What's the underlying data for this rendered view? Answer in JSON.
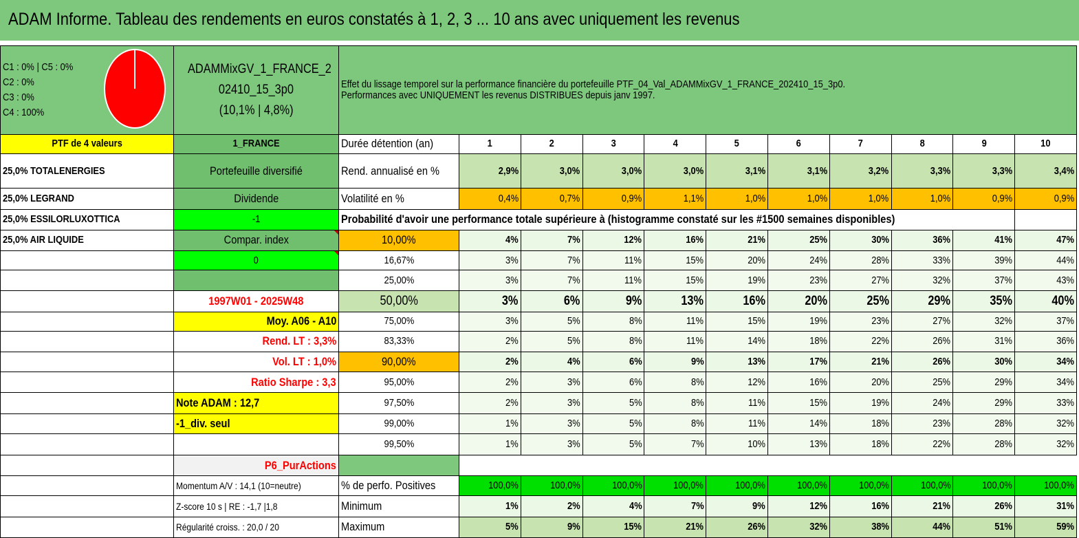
{
  "title": "ADAM Informe. Tableau des rendements en euros constatés à 1, 2, 3 ... 10 ans avec uniquement les revenus",
  "legend": {
    "lines": [
      "C1 : 0% | C5 : 0%",
      "C2 : 0%",
      "C3 : 0%",
      "C4 : 100%"
    ],
    "pie_color": "#ff0000"
  },
  "portfolio": {
    "name_line1": "ADAMMixGV_1_FRANCE_2",
    "name_line2": "02410_15_3p0",
    "name_line3": "(10,1% | 4,8%)",
    "count_label": "PTF de 4 valeurs",
    "region": "1_FRANCE",
    "description_line1": "Effet du lissage temporel sur la performance financière du portefeuille PTF_04_Val_ADAMMixGV_1_FRANCE_202410_15_3p0.",
    "description_line2": "Performances avec UNIQUEMENT les revenus DISTRIBUES depuis janv 1997."
  },
  "holdings": [
    "25,0% TOTALENERGIES",
    "25,0% LEGRAND",
    "25,0% ESSILORLUXOTTICA",
    "25,0% AIR LIQUIDE"
  ],
  "info": {
    "diversified": "Portefeuille diversifié",
    "dividend": "Dividende",
    "dividend_value": "-1",
    "compar_index": "Compar. index",
    "compar_value": "0",
    "period": "1997W01 - 2025W48",
    "moy": "Moy. A06 - A10",
    "rend_lt": "Rend. LT : 3,3%",
    "vol_lt": "Vol. LT : 1,0%",
    "sharpe": "Ratio Sharpe : 3,3",
    "note": "Note ADAM : 12,7",
    "div_only": "-1_div. seul",
    "category": "P6_PurActions",
    "momentum": "Momentum A/V : 14,1 (10=neutre)",
    "zscore": "Z-score 10 s | RE : -1,7 |1,8",
    "regularity": "Régularité croiss. : 20,0 / 20"
  },
  "table": {
    "duration_label": "Durée détention (an)",
    "years": [
      "1",
      "2",
      "3",
      "4",
      "5",
      "6",
      "7",
      "8",
      "9",
      "10"
    ],
    "return_label": "Rend. annualisé en %",
    "returns": [
      "2,9%",
      "3,0%",
      "3,0%",
      "3,0%",
      "3,1%",
      "3,1%",
      "3,2%",
      "3,3%",
      "3,3%",
      "3,4%"
    ],
    "volatility_label": "Volatilité en %",
    "volatility": [
      "0,4%",
      "0,7%",
      "0,9%",
      "1,1%",
      "1,0%",
      "1,0%",
      "1,0%",
      "1,0%",
      "0,9%",
      "0,9%"
    ],
    "probability_header": "Probabilité d'avoir une performance totale supérieure à (histogramme constaté sur les #1500 semaines disponibles)",
    "prob_rows": [
      {
        "threshold": "10,00%",
        "values": [
          "4%",
          "7%",
          "12%",
          "16%",
          "21%",
          "25%",
          "30%",
          "36%",
          "41%",
          "47%"
        ]
      },
      {
        "threshold": "16,67%",
        "values": [
          "3%",
          "7%",
          "11%",
          "15%",
          "20%",
          "24%",
          "28%",
          "33%",
          "39%",
          "44%"
        ]
      },
      {
        "threshold": "25,00%",
        "values": [
          "3%",
          "7%",
          "11%",
          "15%",
          "19%",
          "23%",
          "27%",
          "32%",
          "37%",
          "43%"
        ]
      },
      {
        "threshold": "50,00%",
        "values": [
          "3%",
          "6%",
          "9%",
          "13%",
          "16%",
          "20%",
          "25%",
          "29%",
          "35%",
          "40%"
        ]
      },
      {
        "threshold": "75,00%",
        "values": [
          "3%",
          "5%",
          "8%",
          "11%",
          "15%",
          "19%",
          "23%",
          "27%",
          "32%",
          "37%"
        ]
      },
      {
        "threshold": "83,33%",
        "values": [
          "2%",
          "5%",
          "8%",
          "11%",
          "14%",
          "18%",
          "22%",
          "26%",
          "31%",
          "36%"
        ]
      },
      {
        "threshold": "90,00%",
        "values": [
          "2%",
          "4%",
          "6%",
          "9%",
          "13%",
          "17%",
          "21%",
          "26%",
          "30%",
          "34%"
        ]
      },
      {
        "threshold": "95,00%",
        "values": [
          "2%",
          "3%",
          "6%",
          "8%",
          "12%",
          "16%",
          "20%",
          "25%",
          "29%",
          "34%"
        ]
      },
      {
        "threshold": "97,50%",
        "values": [
          "2%",
          "3%",
          "5%",
          "8%",
          "11%",
          "15%",
          "19%",
          "24%",
          "29%",
          "33%"
        ]
      },
      {
        "threshold": "99,00%",
        "values": [
          "1%",
          "3%",
          "5%",
          "8%",
          "11%",
          "14%",
          "18%",
          "23%",
          "28%",
          "32%"
        ]
      },
      {
        "threshold": "99,50%",
        "values": [
          "1%",
          "3%",
          "5%",
          "7%",
          "10%",
          "13%",
          "18%",
          "22%",
          "28%",
          "32%"
        ]
      }
    ],
    "positive_label": "% de perfo. Positives",
    "positive": [
      "100,0%",
      "100,0%",
      "100,0%",
      "100,0%",
      "100,0%",
      "100,0%",
      "100,0%",
      "100,0%",
      "100,0%",
      "100,0%"
    ],
    "min_label": "Minimum",
    "minimum": [
      "1%",
      "2%",
      "4%",
      "7%",
      "9%",
      "12%",
      "16%",
      "21%",
      "26%",
      "31%"
    ],
    "max_label": "Maximum",
    "maximum": [
      "5%",
      "9%",
      "15%",
      "21%",
      "26%",
      "32%",
      "38%",
      "44%",
      "51%",
      "59%"
    ]
  }
}
